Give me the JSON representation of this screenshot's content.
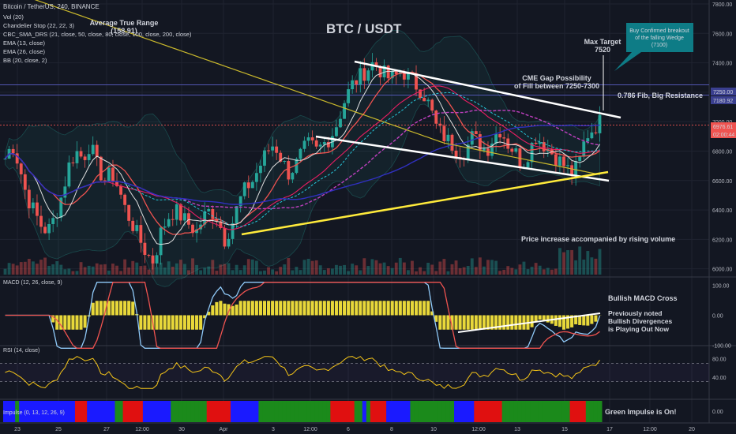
{
  "header": {
    "symbol_line": "Bitcoin / TetherUS, 240, BINANCE",
    "indicators": [
      "Vol (20)",
      "Chandelier Stop (22, 22, 3)",
      "CBC_SMA_DRS (21, close, 50, close, 80, close, 100, close, 200, close)",
      "EMA (13, close)",
      "EMA (26, close)",
      "BB (20, close, 2)"
    ]
  },
  "annotations": {
    "title": "BTC / USDT",
    "atr_label": "Average True Range",
    "atr_value": "(158.91)",
    "max_target_label": "Max Target",
    "max_target_value": "7520",
    "callout_line1": "Buy Confirmed breakout",
    "callout_line2": "of the falling Wedge",
    "callout_line3": "(7100)",
    "cme_line1": "CME Gap Possibility",
    "cme_line2": "of Fill between 7250-7300",
    "fib": "0.786 Fib, Big Resistance",
    "volume_note": "Price increase accompanied by rising volume",
    "macd_cross": "Bullish MACD Cross",
    "div_line1": "Previously noted",
    "div_line2": "Bullish Divergences",
    "div_line3": "is Playing Out Now",
    "impulse_note": "Green Impulse is On!"
  },
  "panes": {
    "macd_label": "MACD (12, 26, close, 9)",
    "rsi_label": "RSI (14, close)",
    "impulse_label": "Impulse (0, 13, 12, 26, 9)"
  },
  "price_axis": {
    "ticks": [
      "7800.00",
      "7600.00",
      "7400.00",
      "7200.00",
      "7000.00",
      "6800.00",
      "6600.00",
      "6400.00",
      "6200.00",
      "6000.00"
    ],
    "tag_7250": "7250.00",
    "tag_7180": "7180.92",
    "tag_last": "6976.61",
    "tag_timer": "02:00:44"
  },
  "macd_axis": {
    "ticks": [
      "100.00",
      "0.00",
      "-100.00"
    ]
  },
  "rsi_axis": {
    "ticks": [
      "80.00",
      "40.00"
    ]
  },
  "impulse_axis": {
    "ticks": [
      "0.00"
    ]
  },
  "time_axis": {
    "labels": [
      "23",
      "25",
      "27",
      "12:00",
      "30",
      "Apr",
      "3",
      "12:00",
      "6",
      "8",
      "10",
      "12:00",
      "13",
      "15",
      "17",
      "12:00",
      "20"
    ]
  },
  "colors": {
    "background": "#131722",
    "up": "#26a69a",
    "down": "#ef5350",
    "yellow": "#ffeb3b",
    "callout": "#0e7c86",
    "impulse_green": "#1b8a1b",
    "impulse_blue": "#1a1aff",
    "impulse_red": "#e01010"
  },
  "chart_data": {
    "type": "candlestick",
    "title": "BTC / USDT",
    "symbol": "Bitcoin / TetherUS",
    "timeframe": "240",
    "exchange": "BINANCE",
    "ylim": [
      5950,
      7800
    ],
    "price_path": [
      6750,
      6850,
      6700,
      6500,
      6400,
      6300,
      6250,
      6350,
      6500,
      6700,
      6800,
      6750,
      6850,
      6700,
      6600,
      6650,
      6550,
      6400,
      6300,
      6200,
      6100,
      6050,
      6250,
      6350,
      6400,
      6350,
      6300,
      6250,
      6350,
      6400,
      6350,
      6200,
      6300,
      6450,
      6550,
      6600,
      6700,
      6800,
      6850,
      6750,
      6650,
      6700,
      6800,
      6850,
      6800,
      6850,
      6900,
      7000,
      7150,
      7250,
      7300,
      7350,
      7400,
      7350,
      7300,
      7300,
      7350,
      7300,
      7250,
      7200,
      7100,
      6950,
      6900,
      6850,
      6800,
      6800,
      6900,
      6850,
      6800,
      6900,
      6950,
      6850,
      6800,
      6700,
      6800,
      6900,
      6850,
      6800,
      6750,
      6700,
      6650,
      6700,
      6900,
      6950,
      7000
    ],
    "levels": [
      {
        "label": "7250.00",
        "value": 7250
      },
      {
        "label": "7180.92",
        "value": 7180.92
      },
      {
        "label": "6976.61",
        "value": 6976.61
      }
    ],
    "wedge": {
      "upper": [
        [
          7430,
          7150
        ]
      ],
      "lower": [
        [
          6900,
          6600
        ]
      ]
    },
    "macd_range": [
      -100,
      100
    ],
    "rsi_range": [
      0,
      100
    ],
    "rsi_levels": [
      70,
      30
    ]
  }
}
